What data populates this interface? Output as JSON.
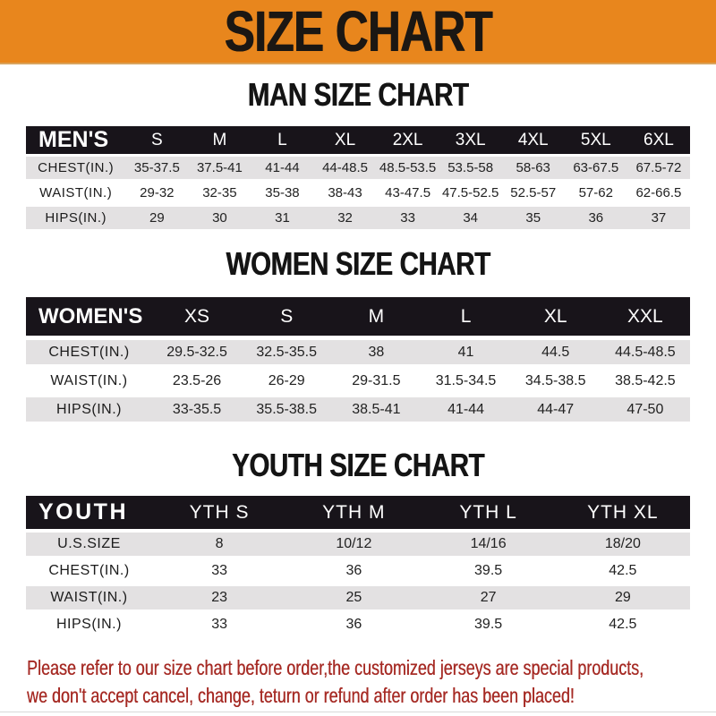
{
  "banner": {
    "title": "SIZE CHART"
  },
  "colors": {
    "banner_bg": "#E8861D",
    "bar_bg": "#18141A",
    "stripe_gray": "#E3E1E2",
    "note_red": "#A62B25"
  },
  "tables": [
    {
      "id": "men",
      "heading": "MAN SIZE CHART",
      "header_label": "MEN'S",
      "columns": [
        "S",
        "M",
        "L",
        "XL",
        "2XL",
        "3XL",
        "4XL",
        "5XL",
        "6XL"
      ],
      "rows": [
        {
          "label": "CHEST(IN.)",
          "values": [
            "35-37.5",
            "37.5-41",
            "41-44",
            "44-48.5",
            "48.5-53.5",
            "53.5-58",
            "58-63",
            "63-67.5",
            "67.5-72"
          ]
        },
        {
          "label": "WAIST(IN.)",
          "values": [
            "29-32",
            "32-35",
            "35-38",
            "38-43",
            "43-47.5",
            "47.5-52.5",
            "52.5-57",
            "57-62",
            "62-66.5"
          ]
        },
        {
          "label": "HIPS(IN.)",
          "values": [
            "29",
            "30",
            "31",
            "32",
            "33",
            "34",
            "35",
            "36",
            "37"
          ]
        }
      ]
    },
    {
      "id": "women",
      "heading": "WOMEN SIZE CHART",
      "header_label": "WOMEN'S",
      "columns": [
        "XS",
        "S",
        "M",
        "L",
        "XL",
        "XXL"
      ],
      "rows": [
        {
          "label": "CHEST(IN.)",
          "values": [
            "29.5-32.5",
            "32.5-35.5",
            "38",
            "41",
            "44.5",
            "44.5-48.5"
          ]
        },
        {
          "label": "WAIST(IN.)",
          "values": [
            "23.5-26",
            "26-29",
            "29-31.5",
            "31.5-34.5",
            "34.5-38.5",
            "38.5-42.5"
          ]
        },
        {
          "label": "HIPS(IN.)",
          "values": [
            "33-35.5",
            "35.5-38.5",
            "38.5-41",
            "41-44",
            "44-47",
            "47-50"
          ]
        }
      ]
    },
    {
      "id": "youth",
      "heading": "YOUTH SIZE CHART",
      "header_label": "YOUTH",
      "columns": [
        "YTH S",
        "YTH M",
        "YTH L",
        "YTH XL"
      ],
      "rows": [
        {
          "label": "U.S.SIZE",
          "values": [
            "8",
            "10/12",
            "14/16",
            "18/20"
          ]
        },
        {
          "label": "CHEST(IN.)",
          "values": [
            "33",
            "36",
            "39.5",
            "42.5"
          ]
        },
        {
          "label": "WAIST(IN.)",
          "values": [
            "23",
            "25",
            "27",
            "29"
          ]
        },
        {
          "label": "HIPS(IN.)",
          "values": [
            "33",
            "36",
            "39.5",
            "42.5"
          ]
        }
      ]
    }
  ],
  "note": {
    "line1": "Please refer to our size chart before order,the customized jerseys are special products,",
    "line2": "we don't accept cancel, change, teturn or refund after order has been placed!"
  },
  "layout": {
    "label_col_pct": {
      "men": 15,
      "women": 19,
      "youth": 19
    }
  }
}
